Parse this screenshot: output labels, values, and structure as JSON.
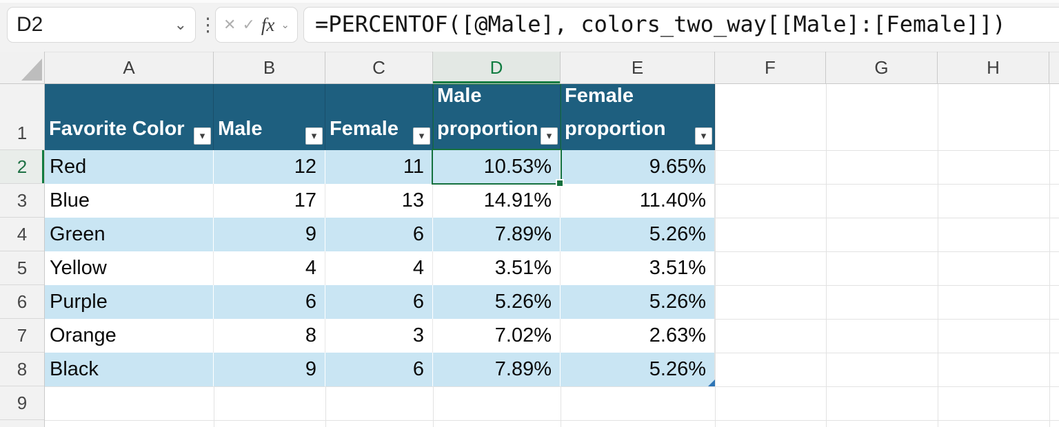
{
  "name_box": {
    "value": "D2"
  },
  "icons": {
    "chevron_down": "⌄",
    "dots": "⋮",
    "cancel": "✕",
    "enter": "✓",
    "fx": "fx",
    "filter": "▾"
  },
  "formula_bar": {
    "formula": "=PERCENTOF([@Male], colors_two_way[[Male]:[Female]])"
  },
  "grid": {
    "columns": [
      "A",
      "B",
      "C",
      "D",
      "E",
      "F",
      "G",
      "H"
    ],
    "selected_column": "D",
    "rows": [
      "1",
      "2",
      "3",
      "4",
      "5",
      "6",
      "7",
      "8",
      "9"
    ],
    "selected_row": "2"
  },
  "table": {
    "name": "colors_two_way",
    "headers": [
      "Favorite Color",
      "Male",
      "Female",
      "Male proportion",
      "Female proportion"
    ],
    "rows": [
      [
        "Red",
        "12",
        "11",
        "10.53%",
        "9.65%"
      ],
      [
        "Blue",
        "17",
        "13",
        "14.91%",
        "11.40%"
      ],
      [
        "Green",
        "9",
        "6",
        "7.89%",
        "5.26%"
      ],
      [
        "Yellow",
        "4",
        "4",
        "3.51%",
        "3.51%"
      ],
      [
        "Purple",
        "6",
        "6",
        "5.26%",
        "5.26%"
      ],
      [
        "Orange",
        "8",
        "3",
        "7.02%",
        "2.63%"
      ],
      [
        "Black",
        "9",
        "6",
        "7.89%",
        "5.26%"
      ]
    ],
    "selected_cell": "D2",
    "selected_value": "10.53%"
  },
  "colors": {
    "table_header_bg": "#1E5F7F",
    "band": "#C9E5F3",
    "selection_green": "#15713E",
    "accent_green": "#107C41",
    "handle_blue": "#2E75B6"
  }
}
